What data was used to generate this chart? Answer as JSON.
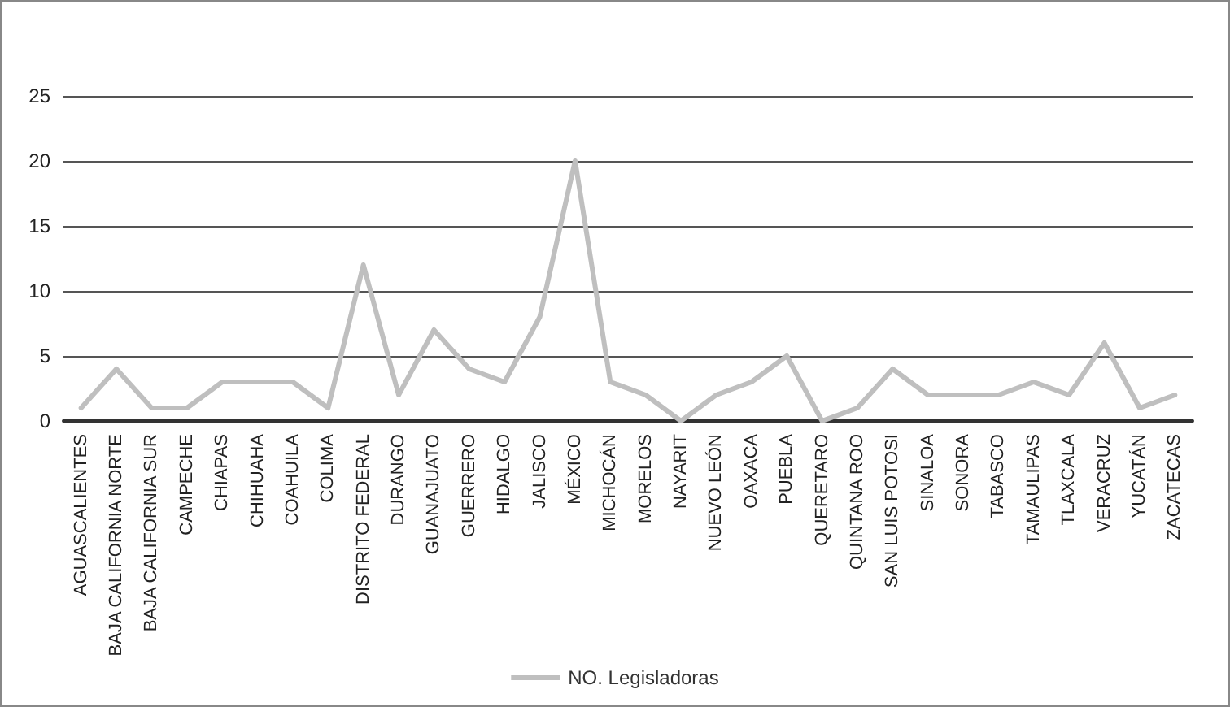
{
  "chart_data": {
    "type": "line",
    "categories": [
      "AGUASCALIENTES",
      "BAJA CALIFORNIA NORTE",
      "BAJA CALIFORNIA SUR",
      "CAMPECHE",
      "CHIAPAS",
      "CHIHUAHA",
      "COAHUILA",
      "COLIMA",
      "DISTRITO FEDERAL",
      "DURANGO",
      "GUANAJUATO",
      "GUERRERO",
      "HIDALGO",
      "JALISCO",
      "MÉXICO",
      "MICHOCÁN",
      "MORELOS",
      "NAYARIT",
      "NUEVO LEÓN",
      "OAXACA",
      "PUEBLA",
      "QUERETARO",
      "QUINTANA ROO",
      "SAN LUIS POTOSI",
      "SINALOA",
      "SONORA",
      "TABASCO",
      "TAMAULIPAS",
      "TLAXCALA",
      "VERACRUZ",
      "YUCATÁN",
      "ZACATECAS"
    ],
    "series": [
      {
        "name": "NO. Legisladoras",
        "color": "#bfbfbf",
        "values": [
          1,
          4,
          1,
          1,
          3,
          3,
          3,
          1,
          12,
          2,
          7,
          4,
          3,
          8,
          20,
          3,
          2,
          0,
          2,
          3,
          5,
          0,
          1,
          4,
          2,
          2,
          2,
          3,
          2,
          6,
          1,
          2
        ]
      }
    ],
    "ylim": [
      0,
      25
    ],
    "yticks": [
      0,
      5,
      10,
      15,
      20,
      25
    ],
    "grid": "y",
    "legend": "bottom",
    "marker": "none"
  }
}
